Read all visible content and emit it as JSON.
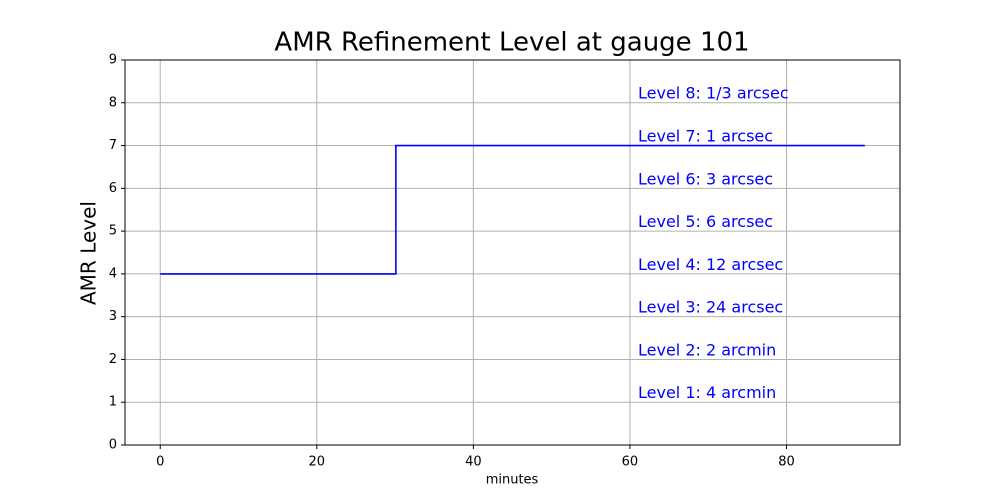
{
  "chart_data": {
    "type": "line",
    "title": "AMR Refinement Level at gauge 101",
    "xlabel": "minutes",
    "ylabel": "AMR Level",
    "x": [
      0,
      30.1,
      30.1,
      30.1,
      30.1,
      90
    ],
    "values": [
      4,
      4,
      5,
      6,
      7,
      7
    ],
    "color": "#0000ff",
    "xlim": [
      -4.5,
      94.5
    ],
    "xticks": [
      0,
      20,
      40,
      60,
      80
    ],
    "ylim": [
      0,
      9
    ],
    "yticks": [
      0,
      1,
      2,
      3,
      4,
      5,
      6,
      7,
      8,
      9
    ],
    "grid": true,
    "annotations": [
      "Level 8: 1/3 arcsec",
      "Level 7: 1 arcsec",
      "Level 6: 3 arcsec",
      "Level 5: 6 arcsec",
      "Level 4: 12 arcsec",
      "Level 3: 24 arcsec",
      "Level 2: 2 arcmin",
      "Level 1: 4 arcmin"
    ]
  }
}
